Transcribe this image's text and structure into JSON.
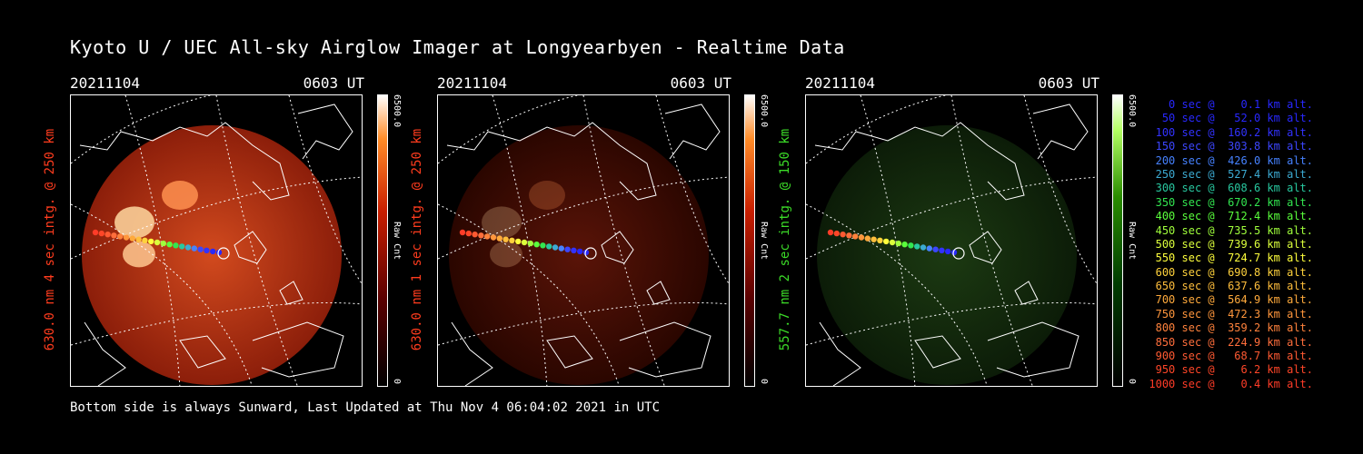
{
  "title": "Kyoto U / UEC All-sky Airglow Imager at Longyearbyen - Realtime Data",
  "footer": "Bottom side is always Sunward, Last Updated at Thu Nov  4 06:04:02 2021 in UTC",
  "panels": [
    {
      "date": "20211104",
      "time": "0603 UT",
      "side_label": "630.0 nm 4 sec intg. @ 250 km",
      "color": "#ff3c1e",
      "cbar_max": "6500.0",
      "cbar_min": "0",
      "cbar_unit": "Raw Cnt"
    },
    {
      "date": "20211104",
      "time": "0603 UT",
      "side_label": "630.0 nm 1 sec intg. @ 250 km",
      "color": "#ff3c1e",
      "cbar_max": "6500.0",
      "cbar_min": "0",
      "cbar_unit": "Raw Cnt"
    },
    {
      "date": "20211104",
      "time": "0603 UT",
      "side_label": "557.7 nm 2 sec intg. @ 150 km",
      "color": "#3cdc28",
      "cbar_max": "6500.0",
      "cbar_min": "0",
      "cbar_unit": "Raw Cnt"
    }
  ],
  "legend": [
    {
      "text": "   0 sec @    0.1 km alt.",
      "color": "#2828ff"
    },
    {
      "text": "  50 sec @   52.0 km alt.",
      "color": "#2828ff"
    },
    {
      "text": " 100 sec @  160.2 km alt.",
      "color": "#3232ff"
    },
    {
      "text": " 150 sec @  303.8 km alt.",
      "color": "#3c46ff"
    },
    {
      "text": " 200 sec @  426.0 km alt.",
      "color": "#4682ff"
    },
    {
      "text": " 250 sec @  527.4 km alt.",
      "color": "#3caad2"
    },
    {
      "text": " 300 sec @  608.6 km alt.",
      "color": "#28c8a0"
    },
    {
      "text": " 350 sec @  670.2 km alt.",
      "color": "#32e650"
    },
    {
      "text": " 400 sec @  712.4 km alt.",
      "color": "#5aff3c"
    },
    {
      "text": " 450 sec @  735.5 km alt.",
      "color": "#a0ff3c"
    },
    {
      "text": " 500 sec @  739.6 km alt.",
      "color": "#dcff3c"
    },
    {
      "text": " 550 sec @  724.7 km alt.",
      "color": "#ffff3c"
    },
    {
      "text": " 600 sec @  690.8 km alt.",
      "color": "#ffd23c"
    },
    {
      "text": " 650 sec @  637.6 km alt.",
      "color": "#ffbe3c"
    },
    {
      "text": " 700 sec @  564.9 km alt.",
      "color": "#ffaa3c"
    },
    {
      "text": " 750 sec @  472.3 km alt.",
      "color": "#ff963c"
    },
    {
      "text": " 800 sec @  359.2 km alt.",
      "color": "#ff823c"
    },
    {
      "text": " 850 sec @  224.9 km alt.",
      "color": "#ff6e3c"
    },
    {
      "text": " 900 sec @   68.7 km alt.",
      "color": "#ff5a32"
    },
    {
      "text": " 950 sec @    6.2 km alt.",
      "color": "#ff4628"
    },
    {
      "text": "1000 sec @    0.4 km alt.",
      "color": "#ff3c28"
    }
  ]
}
